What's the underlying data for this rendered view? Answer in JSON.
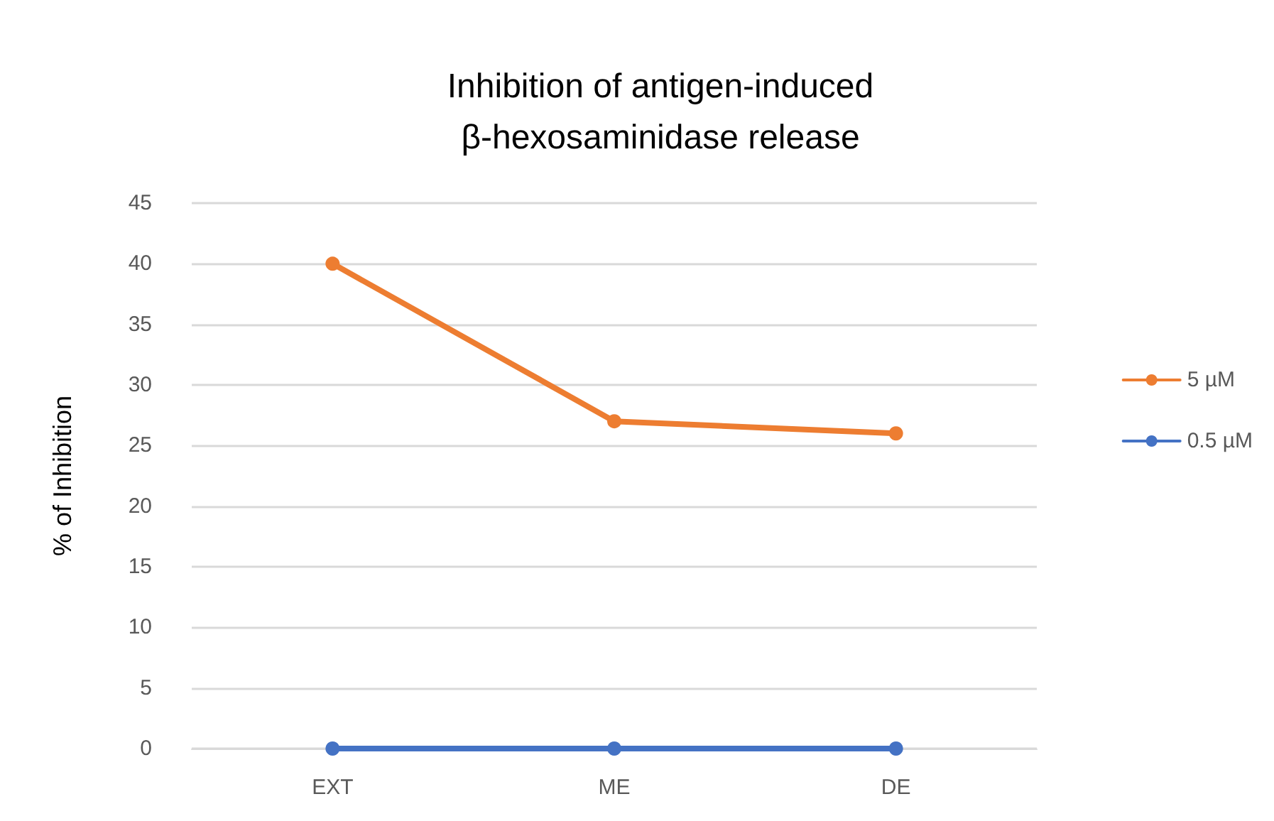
{
  "chart_data": {
    "type": "line",
    "title": "Inhibition of antigen-induced\nβ-hexosaminidase release",
    "ylabel": "% of Inhibition",
    "categories": [
      "EXT",
      "ME",
      "DE"
    ],
    "series": [
      {
        "name": "5 µM",
        "color": "#ed7d31",
        "values": [
          40,
          27,
          26
        ]
      },
      {
        "name": "0.5 µM",
        "color": "#4472c4",
        "values": [
          0,
          0,
          0
        ]
      }
    ],
    "ylim": [
      0,
      45
    ],
    "yticks": [
      0,
      5,
      10,
      15,
      20,
      25,
      30,
      35,
      40,
      45
    ],
    "grid": "y",
    "legend": "right",
    "marker": "circle",
    "line_style": "solid"
  }
}
